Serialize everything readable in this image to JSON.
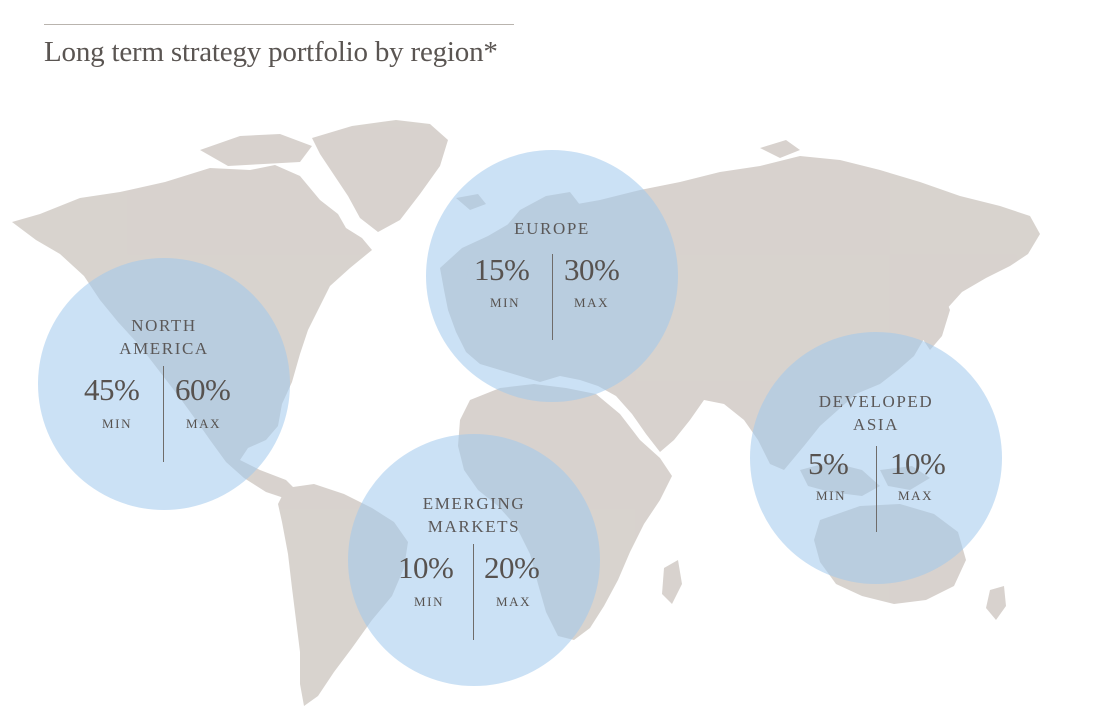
{
  "title": "Long term strategy portfolio by region*",
  "colors": {
    "land": "#d4cec9",
    "circle": "#a0c8ec",
    "text": "#57524f",
    "rule": "#b9b4ae"
  },
  "regions": [
    {
      "name_line1": "NORTH",
      "name_line2": "AMERICA",
      "min": "45%",
      "max": "60%",
      "min_label": "MIN",
      "max_label": "MAX",
      "min_value": 45,
      "max_value": 60
    },
    {
      "name_line1": "EUROPE",
      "name_line2": "",
      "min": "15%",
      "max": "30%",
      "min_label": "MIN",
      "max_label": "MAX",
      "min_value": 15,
      "max_value": 30
    },
    {
      "name_line1": "EMERGING",
      "name_line2": "MARKETS",
      "min": "10%",
      "max": "20%",
      "min_label": "MIN",
      "max_label": "MAX",
      "min_value": 10,
      "max_value": 20
    },
    {
      "name_line1": "DEVELOPED",
      "name_line2": "ASIA",
      "min": "5%",
      "max": "10%",
      "min_label": "MIN",
      "max_label": "MAX",
      "min_value": 5,
      "max_value": 10
    }
  ]
}
